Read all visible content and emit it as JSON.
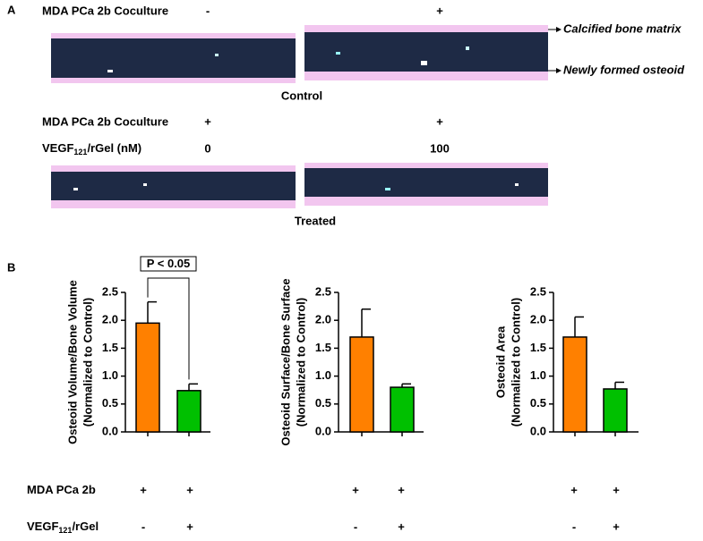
{
  "panel_a": {
    "label": "A",
    "row1": {
      "label": "MDA PCa 2b Coculture",
      "signs": [
        "-",
        "+"
      ]
    },
    "annotations": [
      "Calcified bone matrix",
      "Newly formed osteoid"
    ],
    "control_label": "Control",
    "row2": {
      "label": "MDA PCa 2b Coculture",
      "signs": [
        "+",
        "+"
      ]
    },
    "row3": {
      "label": {
        "main": "VEGF",
        "sub": "121",
        "rest": "/rGel (nM)"
      },
      "values": [
        "0",
        "100"
      ]
    },
    "treated_label": "Treated"
  },
  "panel_b_label": "B",
  "chart_data": [
    {
      "type": "bar",
      "ylabel": [
        "Osteoid Volume/Bone Volume",
        "(Normalized to Control)"
      ],
      "categories": [
        null,
        null
      ],
      "values": [
        1.95,
        0.74
      ],
      "errors": [
        0.38,
        0.12
      ],
      "colors": [
        "#ff8000",
        "#00c000"
      ],
      "ylim": [
        0,
        2.5
      ],
      "yticks": [
        {
          "value": 0,
          "label": "0.0"
        },
        {
          "value": 0.5,
          "label": "0.5"
        },
        {
          "value": 1,
          "label": "1.0"
        },
        {
          "value": 1.5,
          "label": "1.5"
        },
        {
          "value": 2,
          "label": "2.0"
        },
        {
          "value": 2.5,
          "label": "2.5"
        }
      ],
      "annotation": "P < 0.05"
    },
    {
      "type": "bar",
      "ylabel": [
        "Osteoid Surface/Bone Surface",
        "(Normalized to Control)"
      ],
      "categories": [
        null,
        null
      ],
      "values": [
        1.7,
        0.8
      ],
      "errors": [
        0.5,
        0.06
      ],
      "colors": [
        "#ff8000",
        "#00c000"
      ],
      "ylim": [
        0,
        2.5
      ],
      "yticks": [
        {
          "value": 0,
          "label": "0.0"
        },
        {
          "value": 0.5,
          "label": "0.5"
        },
        {
          "value": 1,
          "label": "1.0"
        },
        {
          "value": 1.5,
          "label": "1.5"
        },
        {
          "value": 2,
          "label": "2.0"
        },
        {
          "value": 2.5,
          "label": "2.5"
        }
      ]
    },
    {
      "type": "bar",
      "ylabel": [
        "Osteoid Area",
        "(Normalized to Control)"
      ],
      "categories": [
        null,
        null
      ],
      "values": [
        1.7,
        0.77
      ],
      "errors": [
        0.36,
        0.12
      ],
      "colors": [
        "#ff8000",
        "#00c000"
      ],
      "ylim": [
        0,
        2.5
      ],
      "yticks": [
        {
          "value": 0,
          "label": "0.0"
        },
        {
          "value": 0.5,
          "label": "0.5"
        },
        {
          "value": 1,
          "label": "1.0"
        },
        {
          "value": 1.5,
          "label": "1.5"
        },
        {
          "value": 2,
          "label": "2.0"
        },
        {
          "value": 2.5,
          "label": "2.5"
        }
      ]
    }
  ],
  "conditions": [
    {
      "label": {
        "main": "MDA PCa 2b",
        "sub": "",
        "rest": ""
      },
      "signs": [
        "+",
        "+",
        "+",
        "+",
        "+",
        "+"
      ]
    },
    {
      "label": {
        "main": "VEGF",
        "sub": "121",
        "rest": "/rGel"
      },
      "signs": [
        "-",
        "+",
        "-",
        "+",
        "-",
        "+"
      ]
    }
  ]
}
